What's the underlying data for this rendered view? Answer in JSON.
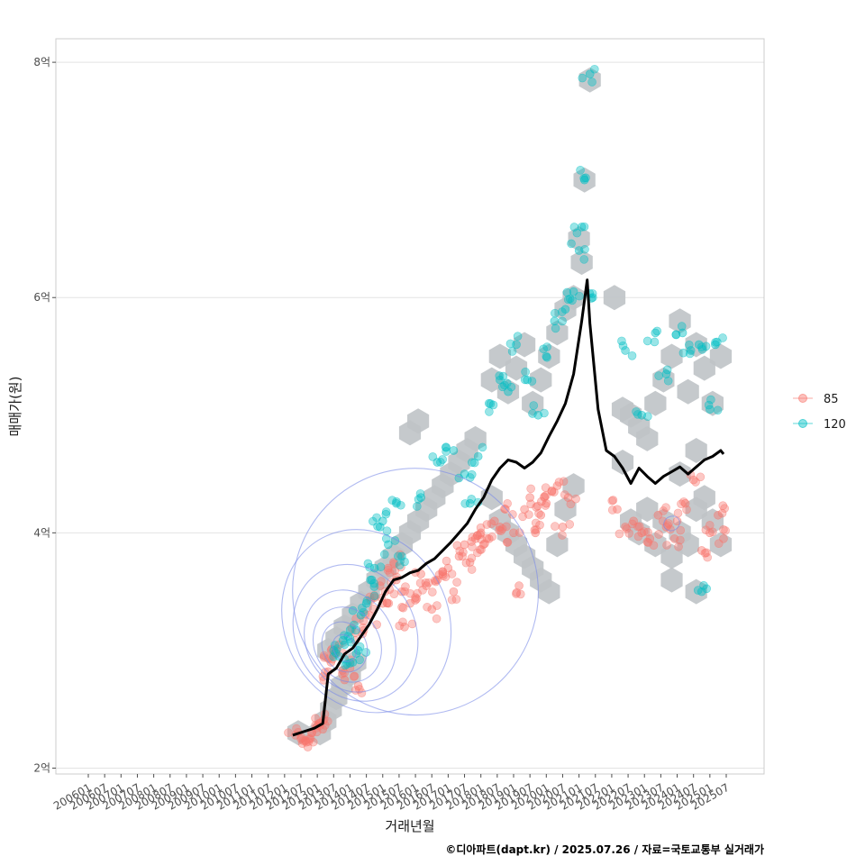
{
  "chart_data": {
    "type": "scatter",
    "xlabel": "거래년월",
    "ylabel": "매매가(원)",
    "caption": "©디아파트(dapt.kr) / 2025.07.26 / 자료=국토교통부 실거래가",
    "x_ticks": [
      "200601",
      "200607",
      "200701",
      "200707",
      "200801",
      "200807",
      "200901",
      "200907",
      "201001",
      "201007",
      "201101",
      "201107",
      "201201",
      "201207",
      "201301",
      "201307",
      "201401",
      "201407",
      "201501",
      "201507",
      "201601",
      "201607",
      "201701",
      "201707",
      "201801",
      "201807",
      "201901",
      "201907",
      "202001",
      "202007",
      "202101",
      "202107",
      "202201",
      "202207",
      "202301",
      "202307",
      "202401",
      "202407",
      "202501",
      "202507"
    ],
    "xlim": [
      "2006-01",
      "2025-07"
    ],
    "y_ticks": [
      {
        "value": 2,
        "label": "2억"
      },
      {
        "value": 4,
        "label": "4억"
      },
      {
        "value": 6,
        "label": "6억"
      },
      {
        "value": 8,
        "label": "8억"
      }
    ],
    "ylim": [
      1.95,
      8.2
    ],
    "grid": true,
    "legend_position": "right",
    "legend": [
      {
        "name": "85",
        "color": "#F8766D"
      },
      {
        "name": "120",
        "color": "#00BFC4"
      }
    ],
    "colors": {
      "hex_fill": "#bfc3c7",
      "trend_line": "#000000",
      "density_contour": "#7b8ce8",
      "panel_border": "#cccccc",
      "grid": "#e3e3e3"
    },
    "series": [
      {
        "name": "85",
        "points": [
          [
            "2012-05",
            2.28
          ],
          [
            "2012-07",
            2.25
          ],
          [
            "2012-09",
            2.22
          ],
          [
            "2012-10",
            2.25
          ],
          [
            "2012-11",
            2.3
          ],
          [
            "2013-01",
            2.36
          ],
          [
            "2013-02",
            2.38
          ],
          [
            "2013-03",
            2.33
          ],
          [
            "2013-05",
            2.82
          ],
          [
            "2013-06",
            2.9
          ],
          [
            "2013-08",
            3.0
          ],
          [
            "2013-09",
            3.05
          ],
          [
            "2013-11",
            2.75
          ],
          [
            "2014-01",
            2.85
          ],
          [
            "2014-03",
            3.15
          ],
          [
            "2014-04",
            2.7
          ],
          [
            "2014-06",
            3.25
          ],
          [
            "2014-08",
            3.3
          ],
          [
            "2014-10",
            3.45
          ],
          [
            "2014-12",
            3.55
          ],
          [
            "2015-01",
            3.4
          ],
          [
            "2015-03",
            3.7
          ],
          [
            "2015-05",
            3.75
          ],
          [
            "2015-06",
            3.6
          ],
          [
            "2015-08",
            3.5
          ],
          [
            "2015-09",
            3.2
          ],
          [
            "2015-11",
            3.4
          ],
          [
            "2016-01",
            3.45
          ],
          [
            "2016-03",
            3.65
          ],
          [
            "2016-05",
            3.55
          ],
          [
            "2016-07",
            3.35
          ],
          [
            "2016-09",
            3.6
          ],
          [
            "2016-11",
            3.65
          ],
          [
            "2017-01",
            3.7
          ],
          [
            "2017-03",
            3.5
          ],
          [
            "2017-05",
            3.8
          ],
          [
            "2017-07",
            3.9
          ],
          [
            "2017-09",
            3.75
          ],
          [
            "2017-11",
            3.95
          ],
          [
            "2018-01",
            4.0
          ],
          [
            "2018-02",
            3.9
          ],
          [
            "2018-04",
            3.95
          ],
          [
            "2018-06",
            4.1
          ],
          [
            "2018-08",
            4.05
          ],
          [
            "2018-10",
            4.2
          ],
          [
            "2019-01",
            4.0
          ],
          [
            "2019-03",
            3.55
          ],
          [
            "2019-05",
            4.2
          ],
          [
            "2019-07",
            4.3
          ],
          [
            "2019-09",
            4.0
          ],
          [
            "2019-11",
            4.15
          ],
          [
            "2020-01",
            4.25
          ],
          [
            "2020-03",
            4.35
          ],
          [
            "2020-05",
            4.4
          ],
          [
            "2020-07",
            4.05
          ],
          [
            "2020-09",
            4.3
          ],
          [
            "2022-03",
            4.2
          ],
          [
            "2022-06",
            4.05
          ],
          [
            "2022-09",
            4.1
          ],
          [
            "2022-12",
            4.0
          ],
          [
            "2023-03",
            3.95
          ],
          [
            "2023-06",
            4.15
          ],
          [
            "2023-09",
            4.05
          ],
          [
            "2023-12",
            3.95
          ],
          [
            "2024-01",
            4.1
          ],
          [
            "2024-04",
            4.25
          ],
          [
            "2024-07",
            4.45
          ],
          [
            "2024-10",
            3.85
          ],
          [
            "2025-01",
            4.0
          ],
          [
            "2025-04",
            4.15
          ],
          [
            "2025-06",
            3.95
          ]
        ]
      },
      {
        "name": "120",
        "points": [
          [
            "2013-07",
            3.0
          ],
          [
            "2013-09",
            2.95
          ],
          [
            "2013-11",
            3.05
          ],
          [
            "2014-01",
            3.1
          ],
          [
            "2014-02",
            2.9
          ],
          [
            "2014-04",
            3.0
          ],
          [
            "2014-05",
            3.3
          ],
          [
            "2014-07",
            3.4
          ],
          [
            "2014-09",
            3.6
          ],
          [
            "2014-10",
            3.7
          ],
          [
            "2014-12",
            4.05
          ],
          [
            "2015-01",
            4.1
          ],
          [
            "2015-03",
            3.9
          ],
          [
            "2015-06",
            4.25
          ],
          [
            "2015-08",
            3.8
          ],
          [
            "2016-03",
            4.3
          ],
          [
            "2016-09",
            4.6
          ],
          [
            "2017-03",
            4.7
          ],
          [
            "2017-07",
            4.5
          ],
          [
            "2017-09",
            4.25
          ],
          [
            "2017-12",
            4.65
          ],
          [
            "2018-04",
            5.1
          ],
          [
            "2018-08",
            5.3
          ],
          [
            "2018-11",
            5.2
          ],
          [
            "2019-02",
            5.6
          ],
          [
            "2019-06",
            5.3
          ],
          [
            "2019-10",
            5.0
          ],
          [
            "2020-01",
            5.5
          ],
          [
            "2020-04",
            5.8
          ],
          [
            "2020-08",
            5.9
          ],
          [
            "2020-11",
            6.05
          ],
          [
            "2021-01",
            6.4
          ],
          [
            "2021-02",
            6.6
          ],
          [
            "2021-03",
            7.0
          ],
          [
            "2021-05",
            7.9
          ],
          [
            "2021-06",
            6.0
          ],
          [
            "2022-06",
            5.55
          ],
          [
            "2022-12",
            5.0
          ],
          [
            "2023-05",
            5.7
          ],
          [
            "2023-09",
            5.35
          ],
          [
            "2024-03",
            5.7
          ],
          [
            "2024-06",
            5.55
          ],
          [
            "2024-09",
            5.6
          ],
          [
            "2025-01",
            5.05
          ],
          [
            "2025-03",
            5.6
          ],
          [
            "2024-10",
            3.5
          ]
        ]
      }
    ],
    "trend": [
      [
        "2012-04",
        2.28
      ],
      [
        "2012-08",
        2.31
      ],
      [
        "2012-12",
        2.34
      ],
      [
        "2013-03",
        2.38
      ],
      [
        "2013-05",
        2.8
      ],
      [
        "2013-08",
        2.85
      ],
      [
        "2013-11",
        2.97
      ],
      [
        "2014-02",
        3.02
      ],
      [
        "2014-05",
        3.12
      ],
      [
        "2014-08",
        3.22
      ],
      [
        "2014-11",
        3.35
      ],
      [
        "2015-02",
        3.5
      ],
      [
        "2015-05",
        3.6
      ],
      [
        "2015-08",
        3.62
      ],
      [
        "2015-11",
        3.66
      ],
      [
        "2016-02",
        3.68
      ],
      [
        "2016-05",
        3.74
      ],
      [
        "2016-08",
        3.78
      ],
      [
        "2016-11",
        3.85
      ],
      [
        "2017-02",
        3.92
      ],
      [
        "2017-05",
        4.0
      ],
      [
        "2017-08",
        4.08
      ],
      [
        "2017-11",
        4.2
      ],
      [
        "2018-02",
        4.3
      ],
      [
        "2018-05",
        4.45
      ],
      [
        "2018-08",
        4.55
      ],
      [
        "2018-11",
        4.62
      ],
      [
        "2019-02",
        4.6
      ],
      [
        "2019-05",
        4.55
      ],
      [
        "2019-08",
        4.6
      ],
      [
        "2019-11",
        4.68
      ],
      [
        "2020-02",
        4.82
      ],
      [
        "2020-05",
        4.95
      ],
      [
        "2020-08",
        5.1
      ],
      [
        "2020-11",
        5.35
      ],
      [
        "2021-02",
        5.8
      ],
      [
        "2021-04",
        6.15
      ],
      [
        "2021-05",
        5.78
      ],
      [
        "2021-08",
        5.05
      ],
      [
        "2021-11",
        4.7
      ],
      [
        "2022-02",
        4.65
      ],
      [
        "2022-05",
        4.55
      ],
      [
        "2022-08",
        4.42
      ],
      [
        "2022-11",
        4.55
      ],
      [
        "2023-02",
        4.48
      ],
      [
        "2023-05",
        4.42
      ],
      [
        "2023-08",
        4.48
      ],
      [
        "2023-11",
        4.52
      ],
      [
        "2024-02",
        4.56
      ],
      [
        "2024-05",
        4.5
      ],
      [
        "2024-08",
        4.56
      ],
      [
        "2024-11",
        4.62
      ],
      [
        "2025-02",
        4.65
      ],
      [
        "2025-05",
        4.7
      ],
      [
        "2025-06",
        4.67
      ]
    ],
    "hexbin_centers": [
      [
        "2012-06",
        2.3
      ],
      [
        "2013-02",
        2.3
      ],
      [
        "2013-04",
        2.4
      ],
      [
        "2013-06",
        2.5
      ],
      [
        "2013-08",
        2.6
      ],
      [
        "2013-10",
        2.7
      ],
      [
        "2014-01",
        2.8
      ],
      [
        "2014-03",
        2.9
      ],
      [
        "2013-05",
        3.0
      ],
      [
        "2013-08",
        3.1
      ],
      [
        "2013-11",
        3.2
      ],
      [
        "2014-02",
        3.3
      ],
      [
        "2014-05",
        3.4
      ],
      [
        "2014-08",
        3.5
      ],
      [
        "2014-11",
        3.6
      ],
      [
        "2015-02",
        3.7
      ],
      [
        "2015-05",
        3.8
      ],
      [
        "2015-08",
        3.9
      ],
      [
        "2015-11",
        4.0
      ],
      [
        "2016-02",
        4.1
      ],
      [
        "2016-05",
        4.2
      ],
      [
        "2016-08",
        4.3
      ],
      [
        "2016-11",
        4.4
      ],
      [
        "2017-02",
        4.5
      ],
      [
        "2017-05",
        4.6
      ],
      [
        "2017-08",
        4.7
      ],
      [
        "2017-11",
        4.8
      ],
      [
        "2015-11",
        4.85
      ],
      [
        "2016-02",
        4.95
      ],
      [
        "2018-05",
        4.3
      ],
      [
        "2018-08",
        4.1
      ],
      [
        "2018-11",
        4.0
      ],
      [
        "2019-02",
        3.9
      ],
      [
        "2019-05",
        3.8
      ],
      [
        "2019-08",
        3.7
      ],
      [
        "2019-11",
        3.6
      ],
      [
        "2020-02",
        3.5
      ],
      [
        "2020-05",
        3.9
      ],
      [
        "2020-08",
        4.2
      ],
      [
        "2020-11",
        4.4
      ],
      [
        "2018-05",
        5.3
      ],
      [
        "2018-08",
        5.5
      ],
      [
        "2018-11",
        5.2
      ],
      [
        "2019-02",
        5.4
      ],
      [
        "2019-05",
        5.6
      ],
      [
        "2019-08",
        5.1
      ],
      [
        "2019-11",
        5.3
      ],
      [
        "2020-02",
        5.5
      ],
      [
        "2020-05",
        5.7
      ],
      [
        "2020-08",
        5.9
      ],
      [
        "2020-11",
        6.0
      ],
      [
        "2021-01",
        6.5
      ],
      [
        "2021-03",
        7.0
      ],
      [
        "2021-05",
        7.85
      ],
      [
        "2021-02",
        6.3
      ],
      [
        "2022-02",
        6.0
      ],
      [
        "2022-05",
        5.05
      ],
      [
        "2022-08",
        5.0
      ],
      [
        "2022-11",
        4.9
      ],
      [
        "2023-02",
        4.8
      ],
      [
        "2023-05",
        5.1
      ],
      [
        "2023-08",
        5.3
      ],
      [
        "2023-11",
        5.5
      ],
      [
        "2024-02",
        5.8
      ],
      [
        "2024-05",
        5.2
      ],
      [
        "2024-08",
        5.6
      ],
      [
        "2024-11",
        5.4
      ],
      [
        "2025-02",
        5.1
      ],
      [
        "2025-05",
        5.5
      ],
      [
        "2022-05",
        4.6
      ],
      [
        "2022-08",
        4.1
      ],
      [
        "2022-11",
        4.0
      ],
      [
        "2023-02",
        4.2
      ],
      [
        "2023-05",
        3.9
      ],
      [
        "2023-08",
        4.1
      ],
      [
        "2023-11",
        3.8
      ],
      [
        "2024-02",
        4.0
      ],
      [
        "2024-05",
        3.9
      ],
      [
        "2024-08",
        4.2
      ],
      [
        "2024-11",
        4.3
      ],
      [
        "2025-02",
        4.1
      ],
      [
        "2025-05",
        3.9
      ],
      [
        "2023-11",
        3.6
      ],
      [
        "2024-08",
        3.5
      ],
      [
        "2024-02",
        4.5
      ],
      [
        "2024-08",
        4.7
      ]
    ],
    "density_contours": [
      {
        "cx": "2013-11",
        "cy": 3.02,
        "rx_months": 4,
        "ry": 0.12
      },
      {
        "cx": "2013-11",
        "cy": 3.03,
        "rx_months": 8,
        "ry": 0.22
      },
      {
        "cx": "2013-12",
        "cy": 3.05,
        "rx_months": 12,
        "ry": 0.33
      },
      {
        "cx": "2014-01",
        "cy": 3.08,
        "rx_months": 16,
        "ry": 0.45
      },
      {
        "cx": "2014-03",
        "cy": 3.15,
        "rx_months": 22,
        "ry": 0.6
      },
      {
        "cx": "2014-07",
        "cy": 3.25,
        "rx_months": 30,
        "ry": 0.8
      },
      {
        "cx": "2016-01",
        "cy": 3.5,
        "rx_months": 45,
        "ry": 1.05
      },
      {
        "cx": "2023-11",
        "cy": 4.08,
        "rx_months": 3,
        "ry": 0.06
      }
    ]
  }
}
